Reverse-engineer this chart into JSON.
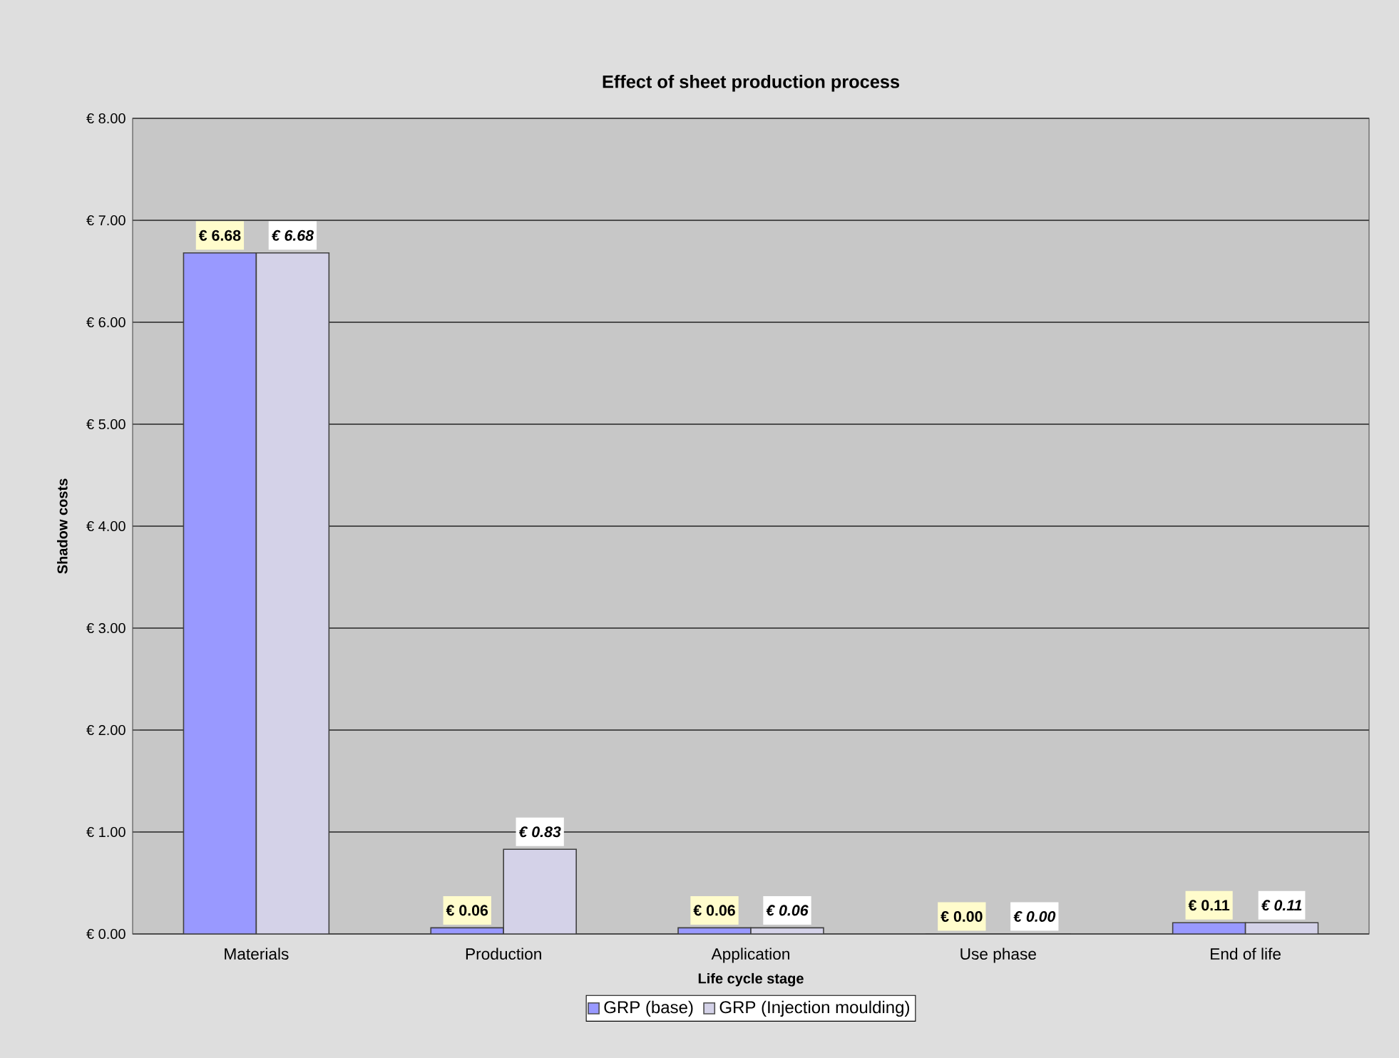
{
  "chart_data": {
    "type": "bar",
    "title": "Effect of sheet production process",
    "xlabel": "Life cycle stage",
    "ylabel": "Shadow costs",
    "categories": [
      "Materials",
      "Production",
      "Application",
      "Use phase",
      "End of life"
    ],
    "series": [
      {
        "name": "GRP (base)",
        "color": "#9999ff",
        "values": [
          6.68,
          0.06,
          0.06,
          0.0,
          0.11
        ],
        "value_labels": [
          "€ 6.68",
          "€ 0.06",
          "€ 0.06",
          "€ 0.00",
          "€ 0.11"
        ]
      },
      {
        "name": "GRP (Injection moulding)",
        "color": "#d4d2e8",
        "values": [
          6.68,
          0.83,
          0.06,
          0.0,
          0.11
        ],
        "value_labels": [
          "€ 6.68",
          "€ 0.83",
          "€ 0.06",
          "€ 0.00",
          "€ 0.11"
        ]
      }
    ],
    "ylim": [
      0,
      8
    ],
    "yticks": [
      {
        "value": 0,
        "label": "€ 0.00"
      },
      {
        "value": 1,
        "label": "€ 1.00"
      },
      {
        "value": 2,
        "label": "€ 2.00"
      },
      {
        "value": 3,
        "label": "€ 3.00"
      },
      {
        "value": 4,
        "label": "€ 4.00"
      },
      {
        "value": 5,
        "label": "€ 5.00"
      },
      {
        "value": 6,
        "label": "€ 6.00"
      },
      {
        "value": 7,
        "label": "€ 7.00"
      },
      {
        "value": 8,
        "label": "€ 8.00"
      }
    ],
    "grid": "y",
    "legend": "bottom"
  }
}
